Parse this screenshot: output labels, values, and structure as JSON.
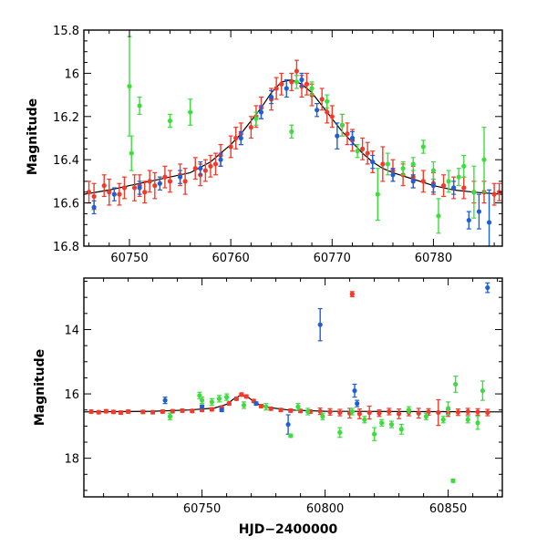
{
  "colors": {
    "blue": "#1f5fd6",
    "red": "#f03a2a",
    "green": "#3fdc3f",
    "model": "#000000"
  },
  "chart_data": [
    {
      "type": "scatter",
      "panel": "top",
      "xlabel": "",
      "ylabel": "Magnitude",
      "xlim": [
        60745.5,
        60786.8
      ],
      "ylim": [
        16.8,
        15.8
      ],
      "inverted_y": true,
      "x_ticks": [
        60750,
        60760,
        60770,
        60780
      ],
      "y_ticks": [
        15.8,
        16.0,
        16.2,
        16.4,
        16.6,
        16.8
      ],
      "y_tick_labels": [
        "15.8",
        "16",
        "16.2",
        "16.4",
        "16.6",
        "16.8"
      ],
      "model_curve": {
        "x": [
          60745.5,
          60748,
          60750,
          60752,
          60754,
          60756,
          60758,
          60760,
          60761,
          60762,
          60763,
          60764,
          60765,
          60766,
          60767,
          60768,
          60769,
          60770,
          60771,
          60772,
          60773,
          60774,
          60775,
          60776,
          60778,
          60780,
          60782,
          60784,
          60786.8
        ],
        "y": [
          16.56,
          16.54,
          16.52,
          16.5,
          16.48,
          16.46,
          16.41,
          16.33,
          16.28,
          16.22,
          16.16,
          16.09,
          16.04,
          16.03,
          16.05,
          16.09,
          16.15,
          16.21,
          16.27,
          16.32,
          16.37,
          16.41,
          16.44,
          16.46,
          16.49,
          16.52,
          16.54,
          16.55,
          16.56
        ]
      },
      "series": [
        {
          "color": "red",
          "x": [
            60746,
            60746.5,
            60747.5,
            60748,
            60749,
            60749.5,
            60750.5,
            60751,
            60751.5,
            60752,
            60752.5,
            60753.5,
            60754,
            60755,
            60755.5,
            60756.5,
            60757,
            60757.5,
            60758,
            60758.5,
            60759,
            60760,
            60760.5,
            60761,
            60762,
            60762.5,
            60763,
            60764,
            60764.5,
            60765,
            60766,
            60766.5,
            60767,
            60767.5,
            60768,
            60769,
            60769.5,
            60770,
            60771,
            60771.5,
            60772,
            60773,
            60773.5,
            60774,
            60775,
            60776,
            60777,
            60778,
            60779,
            60780,
            60781,
            60782,
            60783,
            60784,
            60785,
            60786,
            60786.5
          ],
          "y": [
            16.55,
            16.57,
            16.52,
            16.55,
            16.56,
            16.53,
            16.53,
            16.52,
            16.55,
            16.5,
            16.52,
            16.48,
            16.5,
            16.47,
            16.5,
            16.44,
            16.47,
            16.45,
            16.43,
            16.42,
            16.38,
            16.34,
            16.3,
            16.28,
            16.25,
            16.2,
            16.16,
            16.12,
            16.07,
            16.05,
            16.04,
            15.99,
            16.06,
            16.05,
            16.1,
            16.12,
            16.18,
            16.2,
            16.24,
            16.28,
            16.31,
            16.35,
            16.37,
            16.41,
            16.42,
            16.45,
            16.47,
            16.48,
            16.5,
            16.51,
            16.52,
            16.53,
            16.53,
            16.55,
            16.55,
            16.56,
            16.55
          ],
          "err": [
            0.05,
            0.06,
            0.05,
            0.06,
            0.05,
            0.05,
            0.06,
            0.05,
            0.05,
            0.05,
            0.06,
            0.05,
            0.05,
            0.05,
            0.06,
            0.05,
            0.05,
            0.05,
            0.05,
            0.05,
            0.05,
            0.05,
            0.05,
            0.05,
            0.05,
            0.05,
            0.05,
            0.05,
            0.05,
            0.05,
            0.04,
            0.05,
            0.05,
            0.05,
            0.05,
            0.05,
            0.05,
            0.05,
            0.05,
            0.05,
            0.05,
            0.05,
            0.05,
            0.05,
            0.08,
            0.05,
            0.05,
            0.05,
            0.05,
            0.05,
            0.05,
            0.05,
            0.05,
            0.05,
            0.05,
            0.05,
            0.04
          ]
        },
        {
          "color": "blue",
          "x": [
            60746.5,
            60748.5,
            60751,
            60753,
            60755,
            60757,
            60759,
            60761,
            60763,
            60764,
            60765.5,
            60767,
            60768.5,
            60770.5,
            60772,
            60774,
            60776,
            60778,
            60780,
            60782,
            60783.5,
            60784.5,
            60785.5
          ],
          "y": [
            16.62,
            16.56,
            16.53,
            16.51,
            16.48,
            16.44,
            16.4,
            16.3,
            16.18,
            16.11,
            16.07,
            16.03,
            16.17,
            16.29,
            16.3,
            16.41,
            16.47,
            16.5,
            16.52,
            16.53,
            16.68,
            16.64,
            16.69
          ],
          "err": [
            0.03,
            0.03,
            0.03,
            0.03,
            0.03,
            0.03,
            0.03,
            0.03,
            0.03,
            0.03,
            0.04,
            0.03,
            0.03,
            0.06,
            0.03,
            0.03,
            0.03,
            0.03,
            0.03,
            0.03,
            0.04,
            0.08,
            0.15
          ]
        },
        {
          "color": "green",
          "x": [
            60750,
            60750.2,
            60751,
            60754,
            60756,
            60762.5,
            60766,
            60766.5,
            60768,
            60769.5,
            60771,
            60772.5,
            60774.5,
            60775.5,
            60777,
            60778,
            60779,
            60780,
            60780.5,
            60781.5,
            60782.5,
            60783,
            60784,
            60785
          ],
          "y": [
            16.06,
            16.37,
            16.15,
            16.22,
            16.18,
            16.21,
            16.27,
            16.04,
            16.07,
            16.13,
            16.24,
            16.36,
            16.56,
            16.42,
            16.44,
            16.42,
            16.34,
            16.45,
            16.66,
            16.5,
            16.48,
            16.43,
            16.55,
            16.4
          ],
          "err": [
            0.23,
            0.08,
            0.04,
            0.03,
            0.06,
            0.03,
            0.03,
            0.03,
            0.03,
            0.03,
            0.05,
            0.03,
            0.12,
            0.05,
            0.03,
            0.03,
            0.03,
            0.04,
            0.08,
            0.05,
            0.04,
            0.05,
            0.12,
            0.15
          ]
        }
      ]
    },
    {
      "type": "scatter",
      "panel": "bottom",
      "xlabel": "HJD−2400000",
      "ylabel": "Magnitude",
      "xlim": [
        60702,
        60872
      ],
      "ylim": [
        19.2,
        12.4
      ],
      "inverted_y": true,
      "x_ticks": [
        60750,
        60800,
        60850
      ],
      "y_ticks": [
        14,
        16,
        18
      ],
      "model_curve": {
        "x": [
          60702,
          60730,
          60745,
          60755,
          60760,
          60763,
          60766,
          60769,
          60772,
          60777,
          60785,
          60800,
          60872
        ],
        "y": [
          16.56,
          16.54,
          16.5,
          16.44,
          16.32,
          16.15,
          16.03,
          16.12,
          16.3,
          16.42,
          16.5,
          16.54,
          16.56
        ]
      },
      "series": [
        {
          "color": "red",
          "x": [
            60705,
            60708,
            60711,
            60714,
            60717,
            60720,
            60726,
            60730,
            60734,
            60738,
            60742,
            60746,
            60750,
            60754,
            60758,
            60761,
            60764,
            60766,
            60768,
            60771,
            60774,
            60778,
            60782,
            60786,
            60790,
            60794,
            60798,
            60802,
            60806,
            60810,
            60811,
            60814,
            60818,
            60822,
            60826,
            60830,
            60834,
            60838,
            60842,
            60846,
            60850,
            60854,
            60858,
            60862,
            60866
          ],
          "y": [
            16.55,
            16.57,
            16.54,
            16.56,
            16.58,
            16.55,
            16.56,
            16.57,
            16.55,
            16.54,
            16.52,
            16.53,
            16.5,
            16.48,
            16.42,
            16.3,
            16.15,
            16.02,
            16.08,
            16.22,
            16.38,
            16.46,
            16.5,
            16.52,
            16.53,
            16.55,
            16.54,
            16.56,
            16.58,
            16.6,
            12.9,
            16.62,
            16.58,
            16.6,
            16.55,
            16.62,
            16.58,
            16.6,
            16.56,
            16.58,
            16.6,
            16.57,
            16.55,
            16.56,
            16.58
          ],
          "err": [
            0.05,
            0.05,
            0.05,
            0.05,
            0.05,
            0.05,
            0.05,
            0.05,
            0.05,
            0.05,
            0.05,
            0.05,
            0.05,
            0.05,
            0.05,
            0.05,
            0.05,
            0.05,
            0.05,
            0.05,
            0.05,
            0.05,
            0.05,
            0.05,
            0.05,
            0.05,
            0.1,
            0.1,
            0.1,
            0.15,
            0.08,
            0.15,
            0.2,
            0.1,
            0.1,
            0.15,
            0.1,
            0.15,
            0.1,
            0.4,
            0.1,
            0.1,
            0.1,
            0.1,
            0.1
          ]
        },
        {
          "color": "blue",
          "x": [
            60735,
            60750,
            60758,
            60772,
            60785,
            60798,
            60812,
            60813,
            60866
          ],
          "y": [
            16.2,
            16.4,
            16.5,
            16.3,
            16.95,
            13.85,
            15.9,
            16.3,
            12.7
          ],
          "err": [
            0.1,
            0.05,
            0.05,
            0.05,
            0.3,
            0.5,
            0.2,
            0.1,
            0.15
          ]
        },
        {
          "color": "green",
          "x": [
            60737,
            60749,
            60750,
            60754,
            60757,
            60760,
            60767,
            60776,
            60789,
            60793,
            60799,
            60806,
            60811,
            60816,
            60820,
            60823,
            60827,
            60831,
            60834,
            60841,
            60848,
            60850,
            60853,
            60858,
            60862,
            60864
          ],
          "y": [
            16.7,
            16.05,
            16.2,
            16.25,
            16.15,
            16.1,
            16.35,
            16.4,
            16.4,
            16.55,
            16.7,
            17.2,
            16.55,
            16.8,
            17.25,
            16.9,
            16.95,
            17.1,
            16.5,
            16.7,
            16.8,
            16.45,
            15.7,
            16.8,
            16.9,
            15.9
          ],
          "err": [
            0.1,
            0.1,
            0.1,
            0.1,
            0.1,
            0.1,
            0.1,
            0.1,
            0.1,
            0.1,
            0.1,
            0.15,
            0.1,
            0.1,
            0.2,
            0.1,
            0.1,
            0.15,
            0.1,
            0.1,
            0.1,
            0.2,
            0.25,
            0.1,
            0.2,
            0.3
          ]
        },
        {
          "color": "green",
          "x": [
            60852
          ],
          "y": [
            18.7
          ],
          "err": [
            0.05
          ]
        },
        {
          "color": "green",
          "x": [
            60786
          ],
          "y": [
            17.3
          ],
          "err": [
            0.05
          ]
        }
      ]
    }
  ]
}
